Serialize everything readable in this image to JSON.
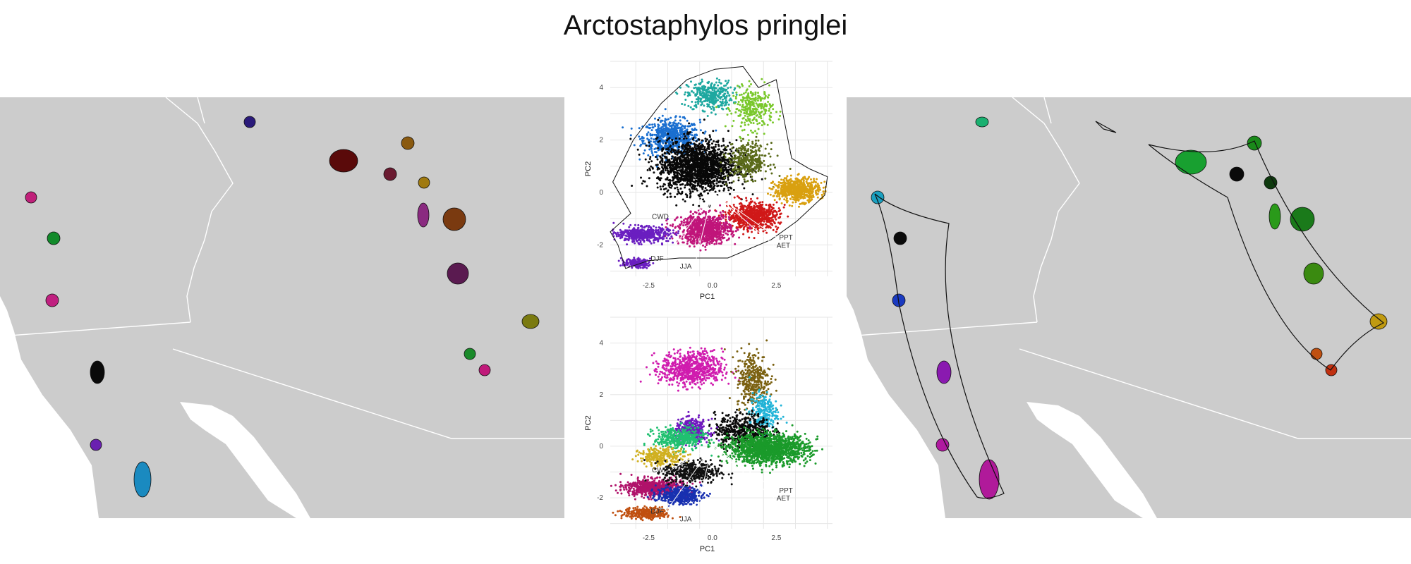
{
  "figure": {
    "title": "Arctostaphylos pringlei"
  },
  "colors": {
    "land": "#cccccc",
    "border": "#ffffff",
    "grid": "#e6e6e6"
  },
  "chart_data": [
    {
      "type": "scatter",
      "panel": "climate-pca-top",
      "xlabel": "PC1",
      "ylabel": "PC2",
      "xlim": [
        -4,
        4.7
      ],
      "ylim": [
        -3.2,
        5
      ],
      "xticks": [
        "-2.5",
        "0.0",
        "2.5"
      ],
      "xtick_values": [
        -2.5,
        0,
        2.5
      ],
      "yticks": [
        "-2",
        "0",
        "2",
        "4"
      ],
      "ytick_values": [
        -2,
        0,
        2,
        4
      ],
      "grid": true,
      "hull": [
        [
          -4.0,
          -1.5
        ],
        [
          -3.7,
          -2.0
        ],
        [
          -3.4,
          -2.9
        ],
        [
          -2.5,
          -2.6
        ],
        [
          -1.3,
          -2.5
        ],
        [
          0.6,
          -2.5
        ],
        [
          2.3,
          -1.8
        ],
        [
          3.3,
          -1.1
        ],
        [
          4.4,
          -0.1
        ],
        [
          4.5,
          0.6
        ],
        [
          3.8,
          0.9
        ],
        [
          3.1,
          1.3
        ],
        [
          2.5,
          4.3
        ],
        [
          1.8,
          4.0
        ],
        [
          1.2,
          4.8
        ],
        [
          0.1,
          4.7
        ],
        [
          -1.0,
          4.3
        ],
        [
          -2.0,
          3.4
        ],
        [
          -3.1,
          2.0
        ],
        [
          -3.9,
          0.4
        ],
        [
          -3.2,
          -0.8
        ]
      ],
      "clusters": [
        {
          "cx": -1.6,
          "cy": 2.1,
          "sx": 1.0,
          "sy": 0.6,
          "n": 650,
          "color": "#1a6fd0"
        },
        {
          "cx": -0.1,
          "cy": 3.7,
          "sx": 0.8,
          "sy": 0.5,
          "n": 350,
          "color": "#1ea8a0"
        },
        {
          "cx": 1.6,
          "cy": 3.2,
          "sx": 0.7,
          "sy": 0.7,
          "n": 300,
          "color": "#7ac82c"
        },
        {
          "cx": -0.6,
          "cy": 1.0,
          "sx": 1.4,
          "sy": 0.9,
          "n": 1700,
          "color": "#080808"
        },
        {
          "cx": 1.4,
          "cy": 1.2,
          "sx": 0.7,
          "sy": 0.6,
          "n": 350,
          "color": "#5a6a1a"
        },
        {
          "cx": 3.3,
          "cy": 0.1,
          "sx": 0.8,
          "sy": 0.4,
          "n": 600,
          "color": "#d9a010"
        },
        {
          "cx": 1.6,
          "cy": -0.9,
          "sx": 0.9,
          "sy": 0.45,
          "n": 700,
          "color": "#d01818"
        },
        {
          "cx": -0.3,
          "cy": -1.4,
          "sx": 0.9,
          "sy": 0.5,
          "n": 900,
          "color": "#c0157a"
        },
        {
          "cx": -2.7,
          "cy": -1.6,
          "sx": 0.9,
          "sy": 0.25,
          "n": 500,
          "color": "#6a1ec0"
        },
        {
          "cx": -3.0,
          "cy": -2.7,
          "sx": 0.5,
          "sy": 0.15,
          "n": 150,
          "color": "#6a1ec0"
        }
      ],
      "vectors": [
        {
          "label": "CWD",
          "x": -1.6,
          "y": -0.9
        },
        {
          "label": "DJF",
          "x": -1.8,
          "y": -2.5
        },
        {
          "label": "JJA",
          "x": -0.7,
          "y": -2.8
        },
        {
          "label": "PPT",
          "x": 2.5,
          "y": -1.7
        },
        {
          "label": "AET",
          "x": 2.4,
          "y": -2.0
        }
      ]
    },
    {
      "type": "scatter",
      "panel": "climate-pca-bottom",
      "xlabel": "PC1",
      "ylabel": "PC2",
      "xlim": [
        -4,
        4.7
      ],
      "ylim": [
        -3.2,
        5
      ],
      "xticks": [
        "-2.5",
        "0.0",
        "2.5"
      ],
      "xtick_values": [
        -2.5,
        0,
        2.5
      ],
      "yticks": [
        "-2",
        "0",
        "2",
        "4"
      ],
      "ytick_values": [
        -2,
        0,
        2,
        4
      ],
      "grid": true,
      "clusters": [
        {
          "cx": -0.8,
          "cy": 3.0,
          "sx": 1.1,
          "sy": 0.6,
          "n": 700,
          "color": "#d01cae"
        },
        {
          "cx": 1.6,
          "cy": 2.6,
          "sx": 0.6,
          "sy": 1.0,
          "n": 350,
          "color": "#7a6010"
        },
        {
          "cx": 2.0,
          "cy": 1.3,
          "sx": 0.5,
          "sy": 0.7,
          "n": 250,
          "color": "#22b4d8"
        },
        {
          "cx": 1.2,
          "cy": 0.6,
          "sx": 1.0,
          "sy": 0.6,
          "n": 500,
          "color": "#0a0a0a"
        },
        {
          "cx": -0.8,
          "cy": 0.6,
          "sx": 0.6,
          "sy": 0.4,
          "n": 350,
          "color": "#7018c0"
        },
        {
          "cx": -1.3,
          "cy": 0.3,
          "sx": 0.9,
          "sy": 0.4,
          "n": 400,
          "color": "#20c070"
        },
        {
          "cx": -2.0,
          "cy": -0.4,
          "sx": 0.8,
          "sy": 0.3,
          "n": 250,
          "color": "#d0b020"
        },
        {
          "cx": 2.2,
          "cy": -0.1,
          "sx": 1.4,
          "sy": 0.5,
          "n": 1500,
          "color": "#1a9a2a"
        },
        {
          "cx": -2.3,
          "cy": -1.6,
          "sx": 1.0,
          "sy": 0.3,
          "n": 700,
          "color": "#b0126a"
        },
        {
          "cx": -1.3,
          "cy": -1.9,
          "sx": 0.8,
          "sy": 0.3,
          "n": 400,
          "color": "#1830b0"
        },
        {
          "cx": -2.6,
          "cy": -2.6,
          "sx": 0.8,
          "sy": 0.2,
          "n": 300,
          "color": "#c05010"
        },
        {
          "cx": -0.8,
          "cy": -1.0,
          "sx": 1.0,
          "sy": 0.4,
          "n": 400,
          "color": "#101010"
        }
      ],
      "vectors": [
        {
          "label": "CWD",
          "x": -1.6,
          "y": -0.9
        },
        {
          "label": "DJF",
          "x": -1.8,
          "y": -2.5
        },
        {
          "label": "JJA",
          "x": -0.7,
          "y": -2.8
        },
        {
          "label": "PPT",
          "x": 2.5,
          "y": -1.7
        },
        {
          "label": "AET",
          "x": 2.4,
          "y": -2.0
        }
      ]
    }
  ],
  "maps": {
    "left_spots": [
      {
        "color": "#2a1a7a",
        "kind": "point"
      },
      {
        "color": "#5a0a0a",
        "kind": "point"
      },
      {
        "color": "#8a5a10",
        "kind": "point"
      },
      {
        "color": "#6a1a30",
        "kind": "point"
      },
      {
        "color": "#a07a10",
        "kind": "point"
      },
      {
        "color": "#8a2a80",
        "kind": "point"
      },
      {
        "color": "#7a3a10",
        "kind": "point"
      },
      {
        "color": "#c0207a",
        "kind": "point"
      },
      {
        "color": "#128a2a",
        "kind": "point"
      },
      {
        "color": "#c02080",
        "kind": "point"
      },
      {
        "color": "#5a1a50",
        "kind": "point"
      },
      {
        "color": "#7a7a10",
        "kind": "point"
      },
      {
        "color": "#1a8a2a",
        "kind": "point"
      },
      {
        "color": "#c01a7a",
        "kind": "point"
      },
      {
        "color": "#0a0a0a",
        "kind": "point"
      },
      {
        "color": "#6a20b0",
        "kind": "point"
      },
      {
        "color": "#1a8ac0",
        "kind": "point"
      }
    ],
    "right_spots": [
      {
        "color": "#1ab070",
        "kind": "point"
      },
      {
        "color": "#18a030",
        "kind": "point"
      },
      {
        "color": "#1a8a1a",
        "kind": "point"
      },
      {
        "color": "#0a0a0a",
        "kind": "point"
      },
      {
        "color": "#0e3a0e",
        "kind": "point"
      },
      {
        "color": "#2a9a1a",
        "kind": "point"
      },
      {
        "color": "#1a7a1a",
        "kind": "point"
      },
      {
        "color": "#3a8a10",
        "kind": "point"
      },
      {
        "color": "#c09a10",
        "kind": "point"
      },
      {
        "color": "#c05010",
        "kind": "point"
      },
      {
        "color": "#c03010",
        "kind": "point"
      },
      {
        "color": "#1aa0c0",
        "kind": "point"
      },
      {
        "color": "#0a0a0a",
        "kind": "point"
      },
      {
        "color": "#1a3ac0",
        "kind": "point"
      },
      {
        "color": "#8a1ab0",
        "kind": "point"
      },
      {
        "color": "#b01aa0",
        "kind": "point"
      },
      {
        "color": "#b01a9a",
        "kind": "point"
      }
    ]
  }
}
